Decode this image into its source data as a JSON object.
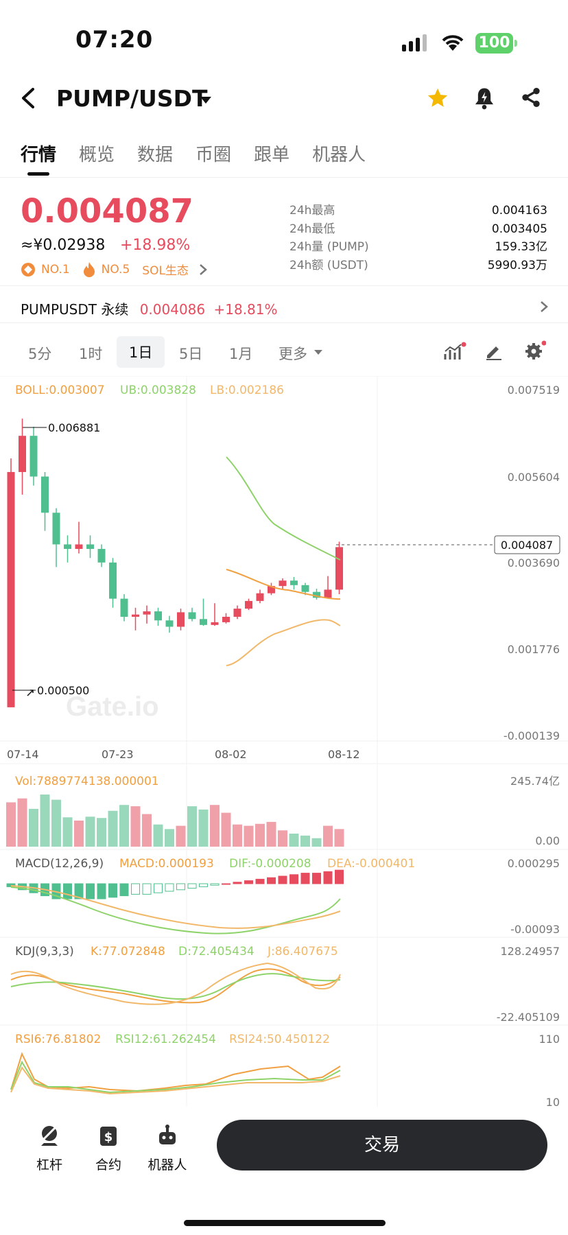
{
  "status_bar": {
    "time": "07:20",
    "battery": "100"
  },
  "header": {
    "pair": "PUMP/USDT"
  },
  "tabs": [
    "行情",
    "概览",
    "数据",
    "币圈",
    "跟单",
    "机器人"
  ],
  "ticker": {
    "price": "0.004087",
    "cny": "≈¥0.02938",
    "change": "+18.98%",
    "badges": [
      "NO.1",
      "NO.5",
      "SOL生态"
    ],
    "stats": [
      {
        "label": "24h最高",
        "value": "0.004163"
      },
      {
        "label": "24h最低",
        "value": "0.003405"
      },
      {
        "label": "24h量 (PUMP)",
        "value": "159.33亿"
      },
      {
        "label": "24h额 (USDT)",
        "value": "5990.93万"
      }
    ]
  },
  "perpetual": {
    "name": "PUMPUSDT 永续",
    "price": "0.004086",
    "change": "+18.81%"
  },
  "intervals": [
    "5分",
    "1时",
    "1日",
    "5日",
    "1月",
    "更多"
  ],
  "colors": {
    "up": "#e64b5e",
    "down": "#4fbf8f",
    "boll_mid": "#f0a040",
    "boll_ub": "#8ed36a",
    "boll_lb": "#f2b86a"
  },
  "chart_data": {
    "type": "candlestick",
    "x_labels": [
      "07-14",
      "07-23",
      "08-02",
      "08-12"
    ],
    "y_ticks": [
      "0.007519",
      "0.005604",
      "0.003690",
      "0.001776",
      "-0.000139"
    ],
    "current_price_label": "0.004087",
    "high_label": "0.006881",
    "low_label": "0.000500",
    "watermark": "Gate.io",
    "candles": [
      {
        "o": 0.0005,
        "c": 0.0057,
        "h": 0.006,
        "l": 0.0005
      },
      {
        "o": 0.0057,
        "c": 0.0065,
        "h": 0.00688,
        "l": 0.0052
      },
      {
        "o": 0.0065,
        "c": 0.0056,
        "h": 0.0067,
        "l": 0.0054
      },
      {
        "o": 0.0056,
        "c": 0.0048,
        "h": 0.0057,
        "l": 0.0044
      },
      {
        "o": 0.0048,
        "c": 0.0041,
        "h": 0.0049,
        "l": 0.0036
      },
      {
        "o": 0.0041,
        "c": 0.004,
        "h": 0.0043,
        "l": 0.0037
      },
      {
        "o": 0.004,
        "c": 0.0041,
        "h": 0.0046,
        "l": 0.0039
      },
      {
        "o": 0.0041,
        "c": 0.004,
        "h": 0.0043,
        "l": 0.0038
      },
      {
        "o": 0.004,
        "c": 0.0037,
        "h": 0.0041,
        "l": 0.0036
      },
      {
        "o": 0.0037,
        "c": 0.0029,
        "h": 0.0038,
        "l": 0.0027
      },
      {
        "o": 0.0029,
        "c": 0.0025,
        "h": 0.003,
        "l": 0.0024
      },
      {
        "o": 0.0025,
        "c": 0.00255,
        "h": 0.0027,
        "l": 0.0022
      },
      {
        "o": 0.00255,
        "c": 0.00262,
        "h": 0.00275,
        "l": 0.00235
      },
      {
        "o": 0.00262,
        "c": 0.00242,
        "h": 0.0027,
        "l": 0.0023
      },
      {
        "o": 0.00242,
        "c": 0.00228,
        "h": 0.00252,
        "l": 0.00215
      },
      {
        "o": 0.00228,
        "c": 0.0026,
        "h": 0.00268,
        "l": 0.0022
      },
      {
        "o": 0.0026,
        "c": 0.00245,
        "h": 0.0027,
        "l": 0.0024
      },
      {
        "o": 0.00245,
        "c": 0.00232,
        "h": 0.0029,
        "l": 0.0023
      },
      {
        "o": 0.00232,
        "c": 0.00238,
        "h": 0.0028,
        "l": 0.0023
      },
      {
        "o": 0.00238,
        "c": 0.0025,
        "h": 0.00258,
        "l": 0.00235
      },
      {
        "o": 0.0025,
        "c": 0.00268,
        "h": 0.00275,
        "l": 0.00245
      },
      {
        "o": 0.00268,
        "c": 0.00285,
        "h": 0.0029,
        "l": 0.00265
      },
      {
        "o": 0.00285,
        "c": 0.00302,
        "h": 0.0031,
        "l": 0.0028
      },
      {
        "o": 0.00302,
        "c": 0.00318,
        "h": 0.00325,
        "l": 0.00298
      },
      {
        "o": 0.00318,
        "c": 0.0033,
        "h": 0.00335,
        "l": 0.0031
      },
      {
        "o": 0.0033,
        "c": 0.0032,
        "h": 0.00338,
        "l": 0.0031
      },
      {
        "o": 0.0032,
        "c": 0.00305,
        "h": 0.00325,
        "l": 0.00298
      },
      {
        "o": 0.00305,
        "c": 0.00292,
        "h": 0.00312,
        "l": 0.00288
      },
      {
        "o": 0.00292,
        "c": 0.0031,
        "h": 0.0034,
        "l": 0.0029
      },
      {
        "o": 0.0031,
        "c": 0.00404,
        "h": 0.00416,
        "l": 0.003
      }
    ],
    "boll": {
      "label": "BOLL:0.003007",
      "ub": "UB:0.003828",
      "lb": "LB:0.002186"
    },
    "volume": {
      "label": "Vol:7889774138.000001",
      "max_label": "245.74亿",
      "min_label": "0.00"
    },
    "macd": {
      "label": "MACD(12,26,9)",
      "macd": "MACD:0.000193",
      "dif": "DIF:-0.000208",
      "dea": "DEA:-0.000401",
      "max_label": "0.000295",
      "min_label": "-0.00093"
    },
    "kdj": {
      "label": "KDJ(9,3,3)",
      "k": "K:77.072848",
      "d": "D:72.405434",
      "j": "J:86.407675",
      "max_label": "128.24957",
      "min_label": "-22.405109"
    },
    "rsi": {
      "rsi6": "RSI6:76.81802",
      "rsi12": "RSI12:61.262454",
      "rsi24": "RSI24:50.450122",
      "max_label": "110",
      "min_label": "10"
    }
  },
  "bottom_nav": {
    "items": [
      "杠杆",
      "合约",
      "机器人"
    ],
    "trade": "交易"
  }
}
